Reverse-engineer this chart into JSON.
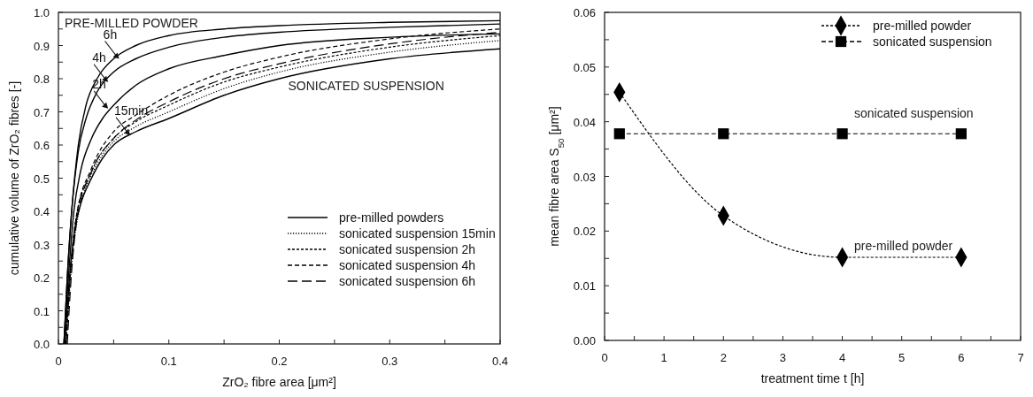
{
  "chart_data": [
    {
      "type": "line",
      "xlabel": "ZrO₂ fibre area [μm²]",
      "ylabel": "cumulative volume of ZrO₂ fibres [-]",
      "xlim": [
        0,
        0.4
      ],
      "ylim": [
        0,
        1
      ],
      "xticks": [
        {
          "value": 0,
          "label": "0"
        },
        {
          "value": 0.05,
          "label": null
        },
        0.1,
        {
          "value": 0.15,
          "label": null
        },
        0.2,
        {
          "value": 0.25,
          "label": null
        },
        0.3,
        {
          "value": 0.35,
          "label": null
        },
        0.4
      ],
      "yticks": [
        {
          "value": 0,
          "label": "0.0"
        },
        {
          "value": 0.05,
          "label": null
        },
        0.1,
        {
          "value": 0.15,
          "label": null
        },
        0.2,
        {
          "value": 0.25,
          "label": null
        },
        0.3,
        {
          "value": 0.35,
          "label": null
        },
        0.4,
        {
          "value": 0.45,
          "label": null
        },
        0.5,
        {
          "value": 0.55,
          "label": null
        },
        0.6,
        {
          "value": 0.65,
          "label": null
        },
        0.7,
        {
          "value": 0.75,
          "label": null
        },
        0.8,
        {
          "value": 0.85,
          "label": null
        },
        0.9,
        {
          "value": 0.95,
          "label": null
        },
        {
          "value": 1,
          "label": "1.0"
        }
      ],
      "grid": false,
      "legend": "bottom right",
      "marker": "none",
      "series": [
        {
          "name": "pre-milled powders",
          "color": "#000000",
          "line_style": "solid",
          "x": [
            0.006,
            0.01,
            0.015,
            0.02,
            0.03,
            0.04,
            0.05,
            0.07,
            0.1,
            0.15,
            0.2,
            0.3,
            0.4
          ],
          "values": [
            0,
            0.2,
            0.35,
            0.42,
            0.5,
            0.56,
            0.6,
            0.64,
            0.68,
            0.75,
            0.8,
            0.86,
            0.89
          ]
        },
        {
          "color": "#000000",
          "line_style": "solid",
          "x": [
            0.005,
            0.009,
            0.014,
            0.02,
            0.03,
            0.04,
            0.05,
            0.07,
            0.1,
            0.15,
            0.2,
            0.3,
            0.4
          ],
          "values": [
            0,
            0.2,
            0.4,
            0.52,
            0.62,
            0.68,
            0.72,
            0.78,
            0.83,
            0.87,
            0.9,
            0.925,
            0.935
          ]
        },
        {
          "color": "#000000",
          "line_style": "solid",
          "x": [
            0.005,
            0.008,
            0.012,
            0.018,
            0.025,
            0.035,
            0.05,
            0.07,
            0.1,
            0.15,
            0.2,
            0.3,
            0.4
          ],
          "values": [
            0,
            0.2,
            0.4,
            0.58,
            0.68,
            0.76,
            0.82,
            0.86,
            0.895,
            0.925,
            0.94,
            0.955,
            0.965
          ]
        },
        {
          "color": "#000000",
          "line_style": "solid",
          "x": [
            0.005,
            0.008,
            0.012,
            0.018,
            0.025,
            0.035,
            0.05,
            0.07,
            0.1,
            0.15,
            0.2,
            0.3,
            0.4
          ],
          "values": [
            0,
            0.2,
            0.4,
            0.6,
            0.72,
            0.8,
            0.86,
            0.9,
            0.93,
            0.95,
            0.96,
            0.97,
            0.975
          ]
        },
        {
          "name": "sonicated suspension 15min",
          "color": "#000000",
          "line_style": "dotted",
          "x": [
            0.007,
            0.011,
            0.016,
            0.02,
            0.03,
            0.04,
            0.05,
            0.07,
            0.1,
            0.15,
            0.2,
            0.3,
            0.4
          ],
          "values": [
            0,
            0.2,
            0.35,
            0.42,
            0.51,
            0.57,
            0.61,
            0.655,
            0.7,
            0.77,
            0.82,
            0.88,
            0.915
          ]
        },
        {
          "name": "sonicated suspension 2h",
          "color": "#000000",
          "line_style": "dashed",
          "x": [
            0.007,
            0.011,
            0.016,
            0.03,
            0.05,
            0.07,
            0.1,
            0.15,
            0.2,
            0.3,
            0.4
          ],
          "values": [
            0,
            0.22,
            0.38,
            0.52,
            0.62,
            0.67,
            0.72,
            0.79,
            0.835,
            0.895,
            0.93
          ]
        },
        {
          "name": "sonicated suspension 4h",
          "color": "#000000",
          "line_style": "dashed",
          "x": [
            0.007,
            0.011,
            0.016,
            0.03,
            0.05,
            0.07,
            0.1,
            0.15,
            0.2,
            0.3,
            0.4
          ],
          "values": [
            0,
            0.22,
            0.38,
            0.53,
            0.64,
            0.69,
            0.75,
            0.82,
            0.865,
            0.92,
            0.95
          ]
        },
        {
          "name": "sonicated suspension 6h",
          "color": "#000000",
          "line_style": "dashed",
          "x": [
            0.008,
            0.012,
            0.017,
            0.03,
            0.05,
            0.07,
            0.1,
            0.15,
            0.2,
            0.3,
            0.4
          ],
          "values": [
            0,
            0.22,
            0.38,
            0.52,
            0.62,
            0.675,
            0.73,
            0.8,
            0.845,
            0.905,
            0.94
          ]
        }
      ],
      "annotations": [
        "PRE-MILLED POWDER",
        "SONICATED SUSPENSION",
        {
          "text": "6h",
          "x": 0.055,
          "y": 0.86
        },
        {
          "text": "4h",
          "x": 0.045,
          "y": 0.79
        },
        {
          "text": "2h",
          "x": 0.045,
          "y": 0.71
        },
        {
          "text": "15min",
          "x": 0.065,
          "y": 0.63
        }
      ]
    },
    {
      "type": "line",
      "xlabel": "treatment time t [h]",
      "ylabel": "mean fibre area S$_{50}$ [μm²]",
      "xlim": [
        0,
        7
      ],
      "ylim": [
        0,
        0.06
      ],
      "xticks": [
        0,
        {
          "value": 0.5,
          "label": null
        },
        1,
        {
          "value": 1.5,
          "label": null
        },
        2,
        {
          "value": 2.5,
          "label": null
        },
        3,
        {
          "value": 3.5,
          "label": null
        },
        4,
        {
          "value": 4.5,
          "label": null
        },
        5,
        {
          "value": 5.5,
          "label": null
        },
        6,
        {
          "value": 6.5,
          "label": null
        },
        7
      ],
      "yticks": [
        {
          "value": 0,
          "label": "0.00"
        },
        {
          "value": 0.005,
          "label": null
        },
        {
          "value": 0.01,
          "label": "0.01"
        },
        {
          "value": 0.015,
          "label": null
        },
        {
          "value": 0.02,
          "label": "0.02"
        },
        {
          "value": 0.025,
          "label": null
        },
        {
          "value": 0.03,
          "label": "0.03"
        },
        {
          "value": 0.035,
          "label": null
        },
        {
          "value": 0.04,
          "label": "0.04"
        },
        {
          "value": 0.045,
          "label": null
        },
        {
          "value": 0.05,
          "label": "0.05"
        },
        {
          "value": 0.055,
          "label": null
        },
        {
          "value": 0.06,
          "label": "0.06"
        }
      ],
      "grid": false,
      "legend": "top right",
      "line_style": "dashed",
      "series": [
        {
          "name": "pre-milled powder",
          "color": "#000000",
          "marker": "diamond",
          "x": [
            0.25,
            2,
            4,
            6
          ],
          "values": [
            0.0454,
            0.0228,
            0.0152,
            0.0152
          ]
        },
        {
          "name": "sonicated suspension",
          "color": "#000000",
          "marker": "square",
          "x": [
            0.25,
            2,
            4,
            6
          ],
          "values": [
            0.0378,
            0.0378,
            0.0378,
            0.0378
          ]
        }
      ],
      "annotations": [
        "sonicated suspension",
        "pre-milled powder"
      ]
    }
  ]
}
